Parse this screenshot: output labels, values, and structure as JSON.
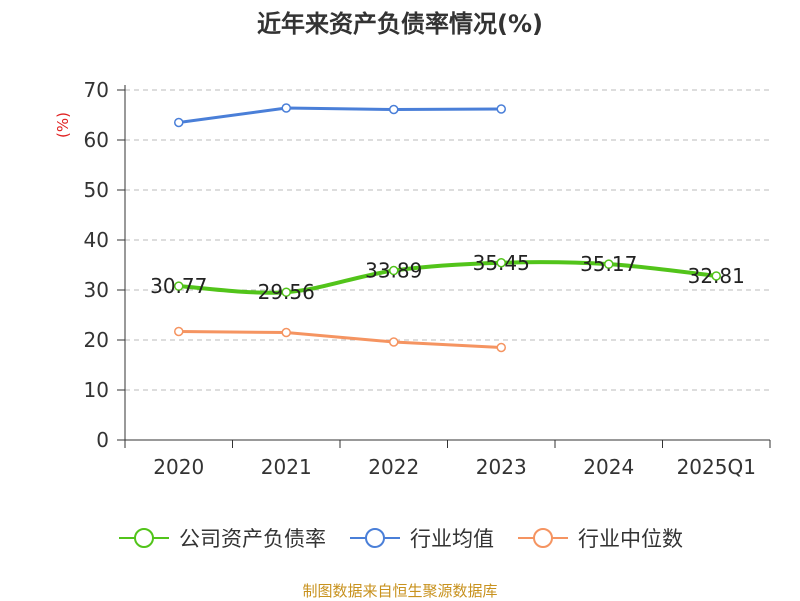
{
  "chart_data": {
    "type": "line",
    "title": "近年来资产负债率情况(%)",
    "ylabel": "(%)",
    "xlabel": "",
    "categories": [
      "2020",
      "2021",
      "2022",
      "2023",
      "2024",
      "2025Q1"
    ],
    "ylim": [
      0,
      70
    ],
    "yticks": [
      0,
      10,
      20,
      30,
      40,
      50,
      60,
      70
    ],
    "grid": true,
    "legend_position": "bottom",
    "series": [
      {
        "name": "公司资产负债率",
        "color": "#52c41a",
        "values": [
          30.77,
          29.56,
          33.89,
          35.45,
          35.17,
          32.81
        ],
        "labels": [
          "30.77",
          "29.56",
          "33.89",
          "35.45",
          "35.17",
          "32.81"
        ]
      },
      {
        "name": "行业均值",
        "color": "#4a7fd8",
        "values": [
          63.5,
          66.4,
          66.1,
          66.2,
          null,
          null
        ]
      },
      {
        "name": "行业中位数",
        "color": "#f59461",
        "values": [
          21.7,
          21.5,
          19.6,
          18.5,
          null,
          null
        ]
      }
    ]
  },
  "footer": {
    "source": "制图数据来自恒生聚源数据库"
  }
}
